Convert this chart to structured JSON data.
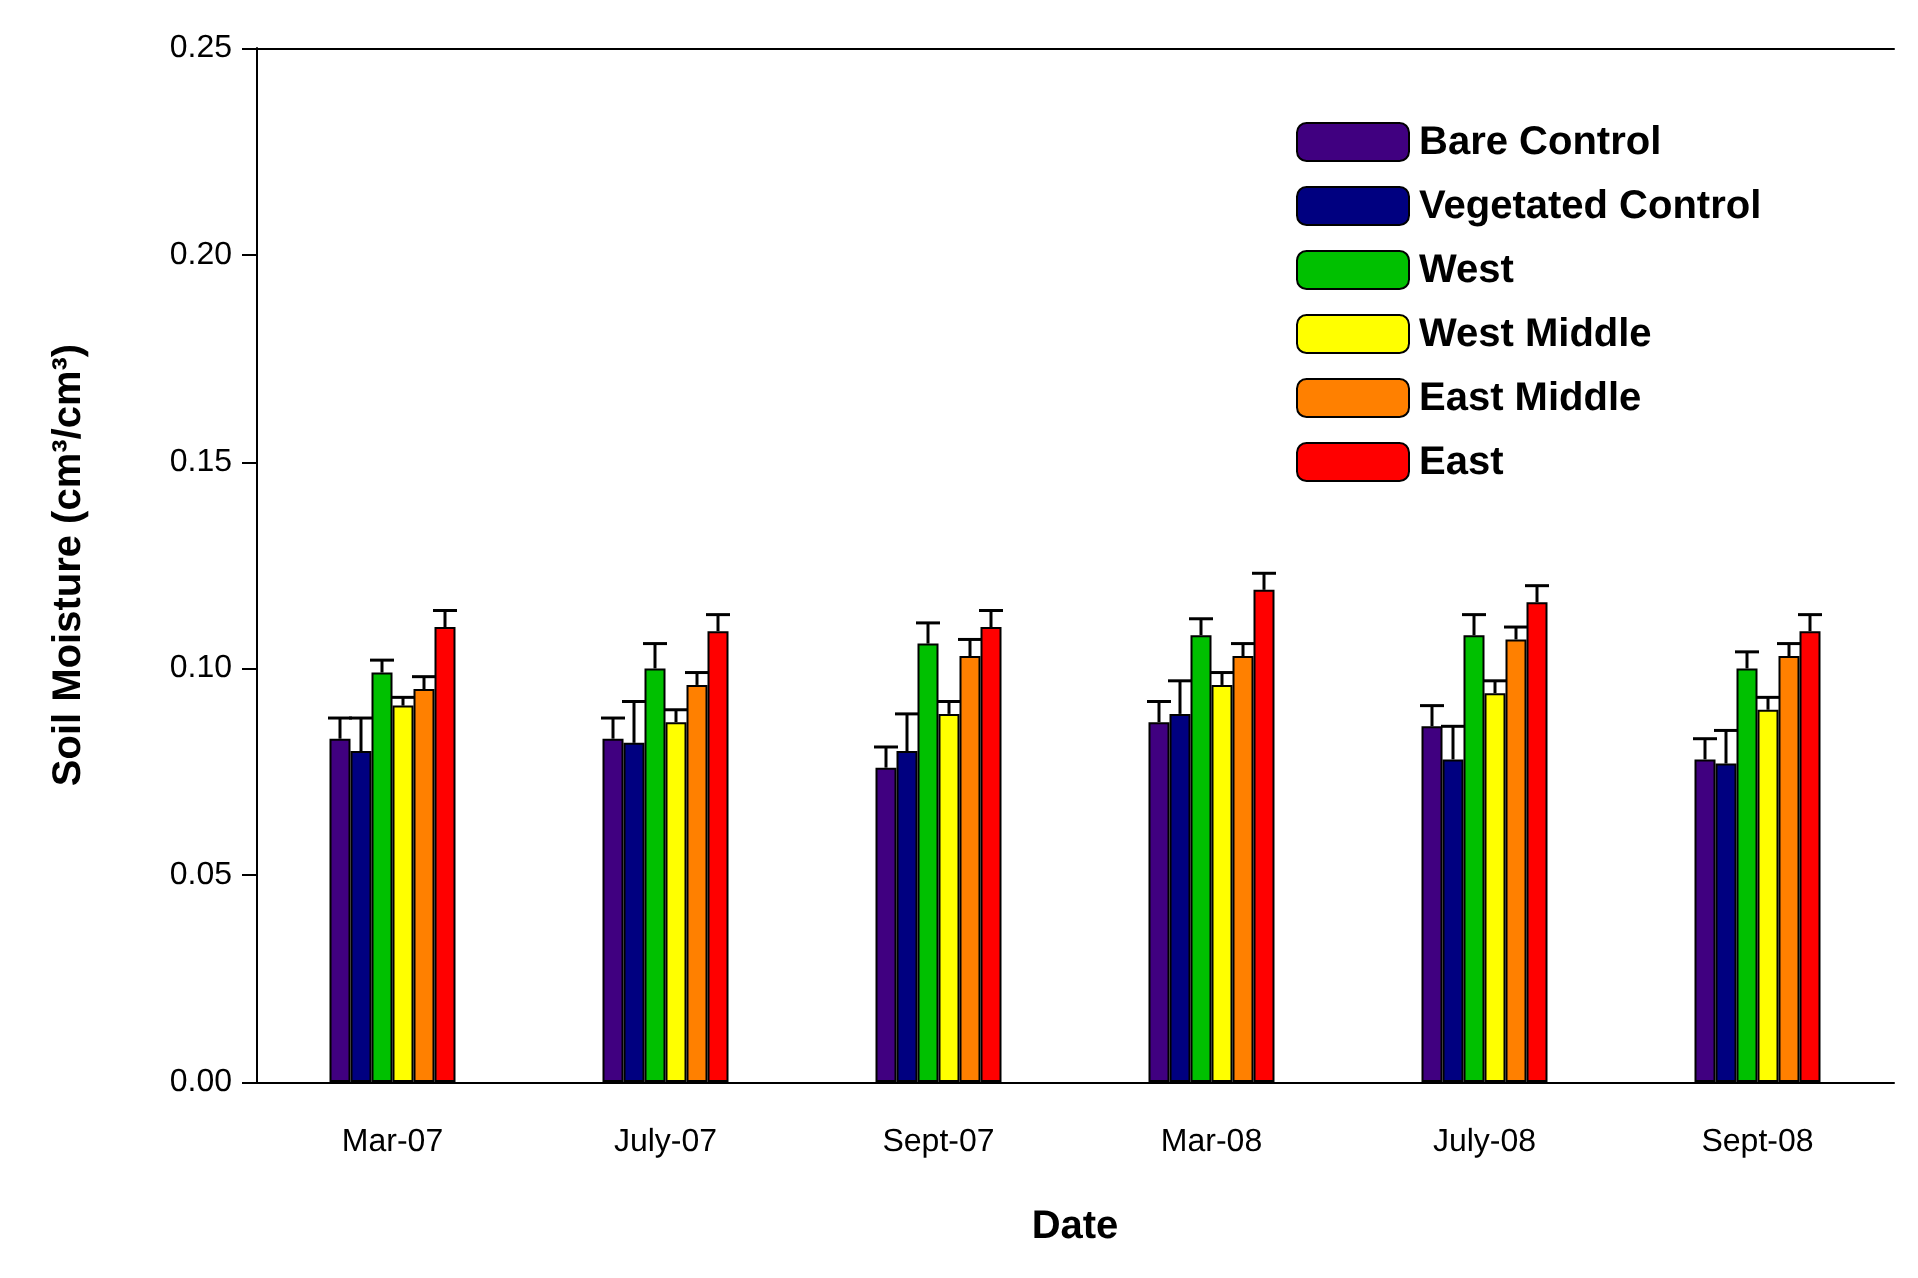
{
  "chart_data": {
    "type": "bar",
    "xlabel": "Date",
    "ylabel": "Soil Moisture (cm³/cm³)",
    "categories": [
      "Mar-07",
      "July-07",
      "Sept-07",
      "Mar-08",
      "July-08",
      "Sept-08"
    ],
    "ylim": [
      0,
      0.25
    ],
    "yticks": [
      {
        "value": 0,
        "label": "0.00"
      },
      {
        "value": 0.05,
        "label": "0.05"
      },
      {
        "value": 0.1,
        "label": "0.10"
      },
      {
        "value": 0.15,
        "label": "0.15"
      },
      {
        "value": 0.2,
        "label": "0.20"
      },
      {
        "value": 0.25,
        "label": "0.25"
      }
    ],
    "grid": false,
    "legend": "top right",
    "series": [
      {
        "name": "Bare Control",
        "color": "#400080",
        "values": [
          0.083,
          0.083,
          0.076,
          0.087,
          0.086,
          0.078
        ],
        "errors": [
          [
            0.083,
            0.088
          ],
          [
            0.083,
            0.088
          ],
          [
            0.076,
            0.081
          ],
          [
            0.087,
            0.092
          ],
          [
            0.086,
            0.091
          ],
          [
            0.078,
            0.083
          ]
        ]
      },
      {
        "name": "Vegetated Control",
        "color": "#000080",
        "values": [
          0.08,
          0.082,
          0.08,
          0.089,
          0.078,
          0.077
        ],
        "errors": [
          [
            0.08,
            0.088
          ],
          [
            0.082,
            0.092
          ],
          [
            0.08,
            0.089
          ],
          [
            0.089,
            0.097
          ],
          [
            0.078,
            0.086
          ],
          [
            0.077,
            0.085
          ]
        ]
      },
      {
        "name": "West",
        "color": "#00c000",
        "values": [
          0.099,
          0.1,
          0.106,
          0.108,
          0.108,
          0.1
        ],
        "errors": [
          [
            0.099,
            0.102
          ],
          [
            0.1,
            0.106
          ],
          [
            0.106,
            0.111
          ],
          [
            0.108,
            0.112
          ],
          [
            0.108,
            0.113
          ],
          [
            0.1,
            0.104
          ]
        ]
      },
      {
        "name": "West Middle",
        "color": "#ffff00",
        "values": [
          0.091,
          0.087,
          0.089,
          0.096,
          0.094,
          0.09
        ],
        "errors": [
          [
            0.091,
            0.093
          ],
          [
            0.087,
            0.09
          ],
          [
            0.089,
            0.092
          ],
          [
            0.096,
            0.099
          ],
          [
            0.094,
            0.097
          ],
          [
            0.09,
            0.093
          ]
        ]
      },
      {
        "name": "East Middle",
        "color": "#ff8000",
        "values": [
          0.095,
          0.096,
          0.103,
          0.103,
          0.107,
          0.103
        ],
        "errors": [
          [
            0.095,
            0.098
          ],
          [
            0.096,
            0.099
          ],
          [
            0.103,
            0.107
          ],
          [
            0.103,
            0.106
          ],
          [
            0.107,
            0.11
          ],
          [
            0.103,
            0.106
          ]
        ]
      },
      {
        "name": "East",
        "color": "#ff0000",
        "values": [
          0.11,
          0.109,
          0.11,
          0.119,
          0.116,
          0.109
        ],
        "errors": [
          [
            0.11,
            0.114
          ],
          [
            0.109,
            0.113
          ],
          [
            0.11,
            0.114
          ],
          [
            0.119,
            0.123
          ],
          [
            0.116,
            0.12
          ],
          [
            0.109,
            0.113
          ]
        ]
      }
    ]
  }
}
